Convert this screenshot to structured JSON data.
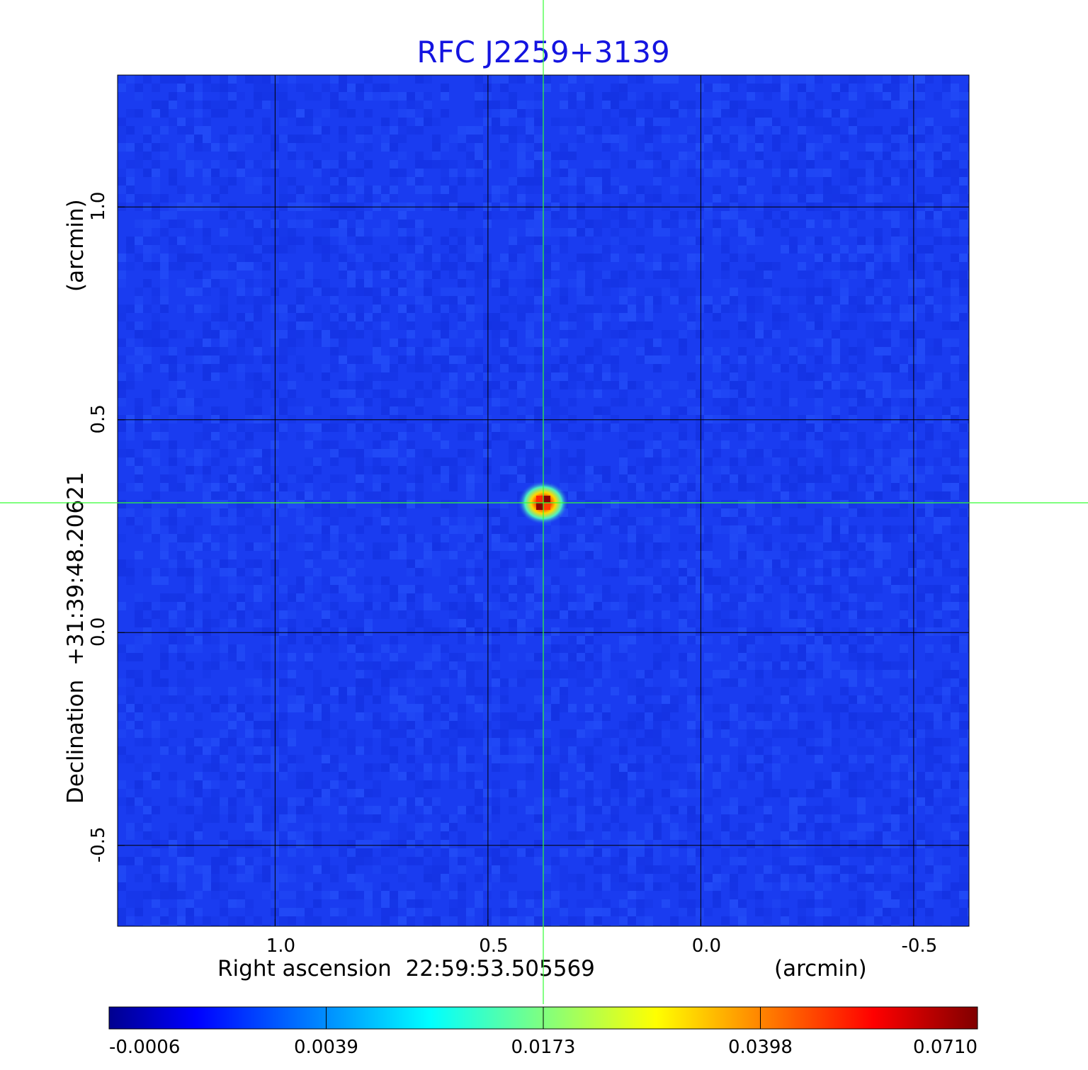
{
  "chart_data": {
    "type": "heatmap",
    "title": "RFC J2259+3139",
    "colors": {
      "title": "#1414e0",
      "background": "#1a3cf0",
      "grid": "#000000",
      "crosshair": "#33ff33",
      "colormap": [
        "#00008f",
        "#0000ff",
        "#00ffff",
        "#ffff00",
        "#ff0000",
        "#800000"
      ]
    },
    "x_axis": {
      "label": "Right ascension  22:59:53.505569",
      "unit": "(arcmin)",
      "ticks": [
        {
          "value": 1.0,
          "label": "1.0"
        },
        {
          "value": 0.5,
          "label": "0.5"
        },
        {
          "value": 0.0,
          "label": "0.0"
        },
        {
          "value": -0.5,
          "label": "-0.5"
        }
      ],
      "range": [
        1.37,
        -0.63
      ],
      "direction": "decreasing"
    },
    "y_axis": {
      "label": "Declination  +31:39:48.20621",
      "unit": "(arcmin)",
      "ticks": [
        {
          "value": 1.0,
          "label": "1.0"
        },
        {
          "value": 0.5,
          "label": "0.5"
        },
        {
          "value": 0.0,
          "label": "0.0"
        },
        {
          "value": -0.5,
          "label": "-0.5"
        }
      ],
      "range": [
        -0.69,
        1.31
      ]
    },
    "grid": true,
    "crosshair": {
      "x": 0.37,
      "y": 0.305
    },
    "source_peak": {
      "x": 0.37,
      "y": 0.305,
      "value": 0.071
    },
    "colorbar": {
      "ticks": [
        "-0.0006",
        "0.0039",
        "0.0173",
        "0.0398",
        "0.0710"
      ]
    }
  }
}
